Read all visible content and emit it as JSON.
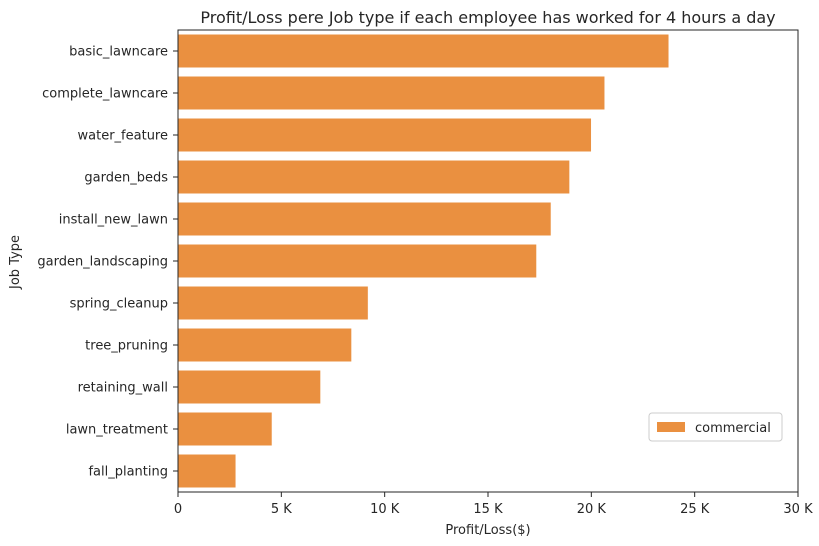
{
  "chart_data": {
    "type": "bar",
    "orientation": "horizontal",
    "title": "Profit/Loss pere Job type if each employee has worked for 4 hours a day",
    "xlabel": "Profit/Loss($)",
    "ylabel": "Job Type",
    "xlim": [
      0,
      30000
    ],
    "x_ticks": [
      0,
      5000,
      10000,
      15000,
      20000,
      25000,
      30000
    ],
    "x_tick_labels": [
      "0",
      "5 K",
      "10 K",
      "15 K",
      "20 K",
      "25 K",
      "30 K"
    ],
    "grid": false,
    "legend_position": "lower-right",
    "categories": [
      "basic_lawncare",
      "complete_lawncare",
      "water_feature",
      "garden_beds",
      "install_new_lawn",
      "garden_landscaping",
      "spring_cleanup",
      "tree_pruning",
      "retaining_wall",
      "lawn_treatment",
      "fall_planting"
    ],
    "series": [
      {
        "name": "commercial",
        "color": "#ea9040",
        "values": [
          23750,
          20650,
          20000,
          18950,
          18050,
          17350,
          9200,
          8400,
          6900,
          4550,
          2800
        ]
      }
    ]
  }
}
